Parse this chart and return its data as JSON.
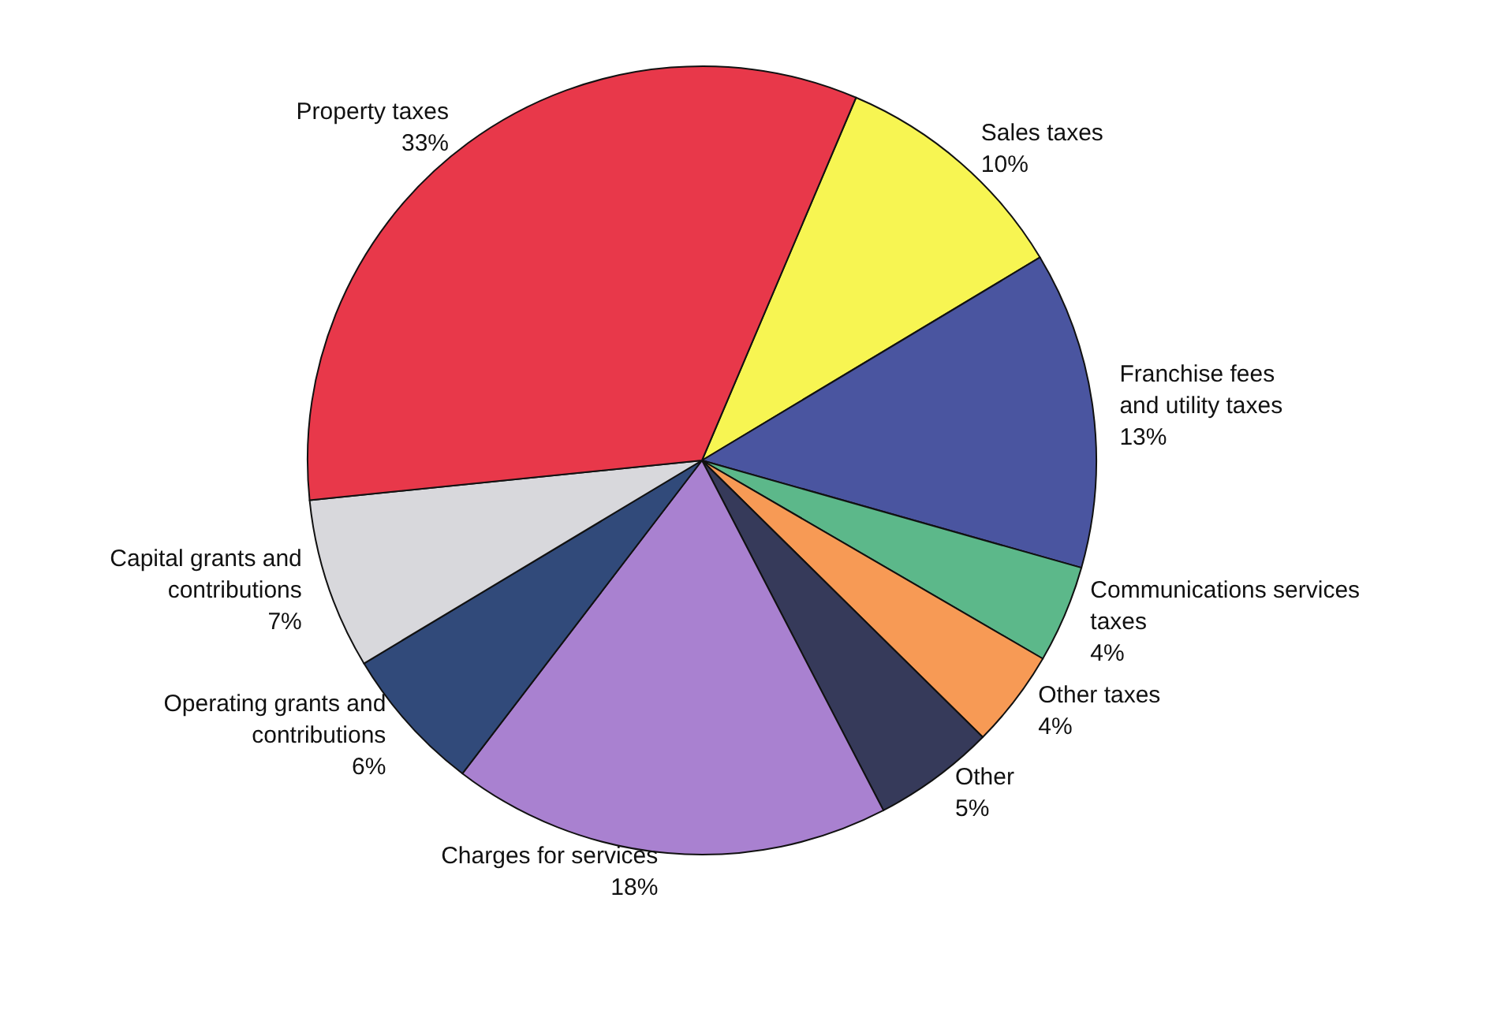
{
  "chart_data": {
    "type": "pie",
    "categories": [
      "Sales taxes",
      "Franchise fees\nand utility taxes",
      "Communications services\ntaxes",
      "Other taxes",
      "Other",
      "Charges for services",
      "Operating grants and\ncontributions",
      "Capital grants and\ncontributions",
      "Property taxes"
    ],
    "values": [
      10,
      13,
      4,
      4,
      5,
      18,
      6,
      7,
      33
    ],
    "value_labels": [
      "10%",
      "13%",
      "4%",
      "4%",
      "5%",
      "18%",
      "6%",
      "7%",
      "33%"
    ],
    "colors": [
      "#f7f552",
      "#4a55a0",
      "#5cb88a",
      "#f79a55",
      "#363a5a",
      "#a981d0",
      "#314a7a",
      "#d8d8dc",
      "#e8384a"
    ],
    "legend": false
  }
}
